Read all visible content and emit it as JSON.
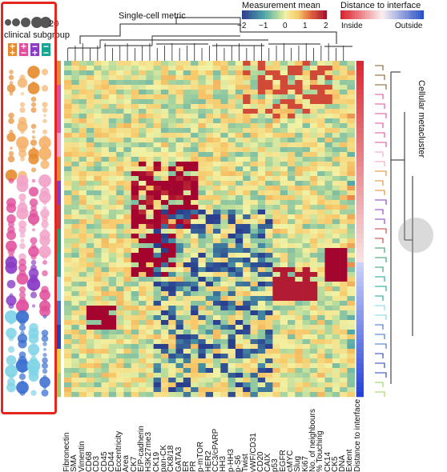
{
  "header": {
    "metric_title": "Single-cell metric",
    "measurement_title": "Measurement mean",
    "distance_title": "Distance to interface",
    "cbar_ticks": [
      "−2",
      "−1",
      "0",
      "1",
      "2"
    ],
    "inside": "Inside",
    "outside": "Outside",
    "metacluster_title": "Cellular metacluster"
  },
  "legend": {
    "count": "20",
    "clinical": "clinical subgroup",
    "signs": [
      {
        "top": "+",
        "bottom": "+",
        "color": "#e78a2c"
      },
      {
        "top": "+",
        "bottom": "−",
        "color": "#e14f9c"
      },
      {
        "top": "−",
        "bottom": "+",
        "color": "#8a3bc5"
      },
      {
        "top": "−",
        "bottom": "−",
        "color": "#17a591"
      }
    ]
  },
  "columns": [
    "Fibronectin",
    "SMA",
    "Vimentin",
    "CD68",
    "CD3",
    "CD45",
    "CD44",
    "Eccentricity",
    "Area",
    "CK7",
    "E/P-cadherin",
    "H3K27me3",
    "CK19",
    "pan-CK",
    "CK8/18",
    "GATA3",
    "ER",
    "PR",
    "p-mTOR",
    "HER2",
    "CC3/cPARP",
    "HH3",
    "p-HH3",
    "p-S6",
    "Twist",
    "vWF/CD31",
    "CD20",
    "CAIX",
    "p53",
    "EGFR",
    "cMYC",
    "Slug",
    "Ki67",
    "No. of neighbours",
    "% Touching",
    "CK14",
    "CK5",
    "DNA",
    "Extent",
    "Distance to interface"
  ],
  "colors": {
    "highlight_box": "#e5261f",
    "cmap_low": "#2b3f8f",
    "cmap_mid": "#f2f2a4",
    "cmap_high": "#a3052f"
  }
}
